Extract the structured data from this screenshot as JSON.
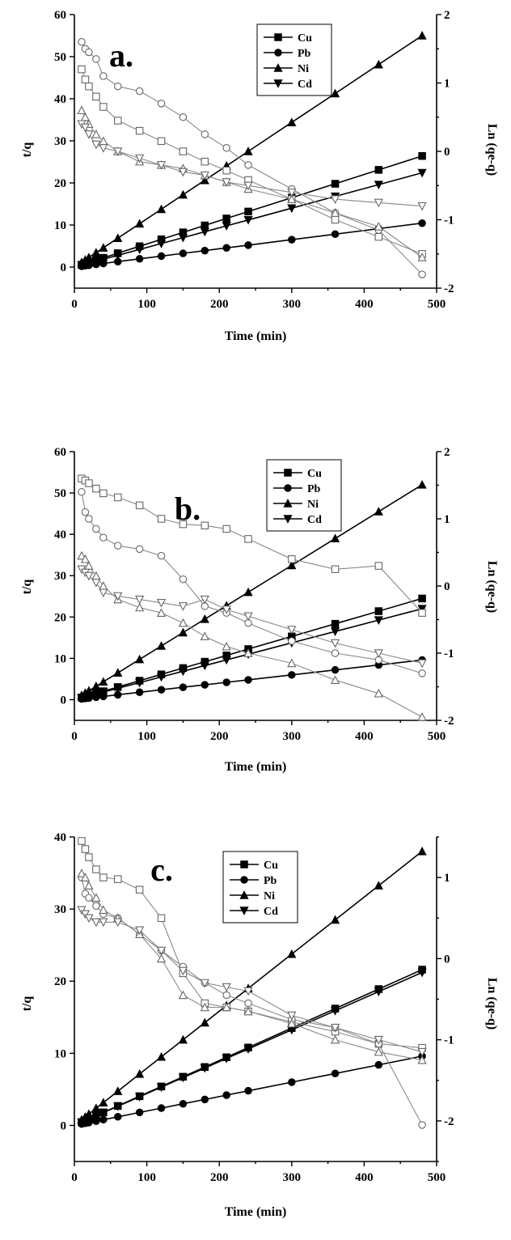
{
  "chart_data": [
    {
      "type": "line",
      "panel_label": "a.",
      "xlabel": "Time (min)",
      "ylabel": "t/q",
      "y2label": "Ln (qe-q)",
      "xlim": [
        0,
        500
      ],
      "ylim": [
        -5,
        60
      ],
      "y2lim": [
        -2,
        2
      ],
      "xticks": [
        0,
        100,
        200,
        300,
        400,
        500
      ],
      "yticks": [
        0,
        10,
        20,
        30,
        40,
        50,
        60
      ],
      "y2ticks": [
        -2,
        -1,
        0,
        1,
        2
      ],
      "legend": [
        "Cu",
        "Pb",
        "Ni",
        "Cd"
      ],
      "legend_position": "top-center",
      "x": [
        10,
        15,
        20,
        30,
        40,
        60,
        90,
        120,
        150,
        180,
        210,
        240,
        300,
        360,
        420,
        480
      ],
      "series": [
        {
          "name": "Cu",
          "marker": "square",
          "axis": "left",
          "filled": true,
          "values": [
            0.55,
            0.83,
            1.1,
            1.65,
            2.2,
            3.3,
            4.95,
            6.6,
            8.25,
            9.9,
            11.55,
            13.2,
            16.5,
            19.8,
            23.1,
            26.4
          ]
        },
        {
          "name": "Pb",
          "marker": "circle",
          "axis": "left",
          "filled": true,
          "values": [
            0.22,
            0.33,
            0.44,
            0.65,
            0.87,
            1.3,
            1.96,
            2.61,
            3.26,
            3.91,
            4.57,
            5.22,
            6.52,
            7.83,
            9.13,
            10.44
          ]
        },
        {
          "name": "Ni",
          "marker": "triangle-up",
          "axis": "left",
          "filled": true,
          "values": [
            1.15,
            1.72,
            2.29,
            3.44,
            4.58,
            6.88,
            10.31,
            13.75,
            17.19,
            20.63,
            24.06,
            27.5,
            34.38,
            41.25,
            48.13,
            55.0
          ]
        },
        {
          "name": "Cd",
          "marker": "triangle-down",
          "axis": "left",
          "filled": true,
          "values": [
            0.47,
            0.7,
            0.93,
            1.4,
            1.87,
            2.8,
            4.2,
            5.6,
            7.0,
            8.4,
            9.8,
            11.2,
            14.0,
            16.8,
            19.6,
            22.4
          ]
        },
        {
          "name": "Cu",
          "marker": "square",
          "axis": "right",
          "filled": false,
          "values": [
            1.2,
            1.05,
            0.95,
            0.8,
            0.65,
            0.45,
            0.3,
            0.15,
            0.0,
            -0.15,
            -0.28,
            -0.42,
            -0.7,
            -1.0,
            -1.25,
            -1.5
          ]
        },
        {
          "name": "Pb",
          "marker": "circle",
          "axis": "right",
          "filled": false,
          "values": [
            1.6,
            1.5,
            1.45,
            1.35,
            1.1,
            0.95,
            0.88,
            0.7,
            0.5,
            0.25,
            0.05,
            -0.2,
            -0.55,
            -0.9,
            -1.15,
            -1.8
          ]
        },
        {
          "name": "Ni",
          "marker": "triangle-up",
          "axis": "right",
          "filled": false,
          "values": [
            0.6,
            0.5,
            0.4,
            0.25,
            0.15,
            0.0,
            -0.15,
            -0.2,
            -0.25,
            -0.35,
            -0.45,
            -0.55,
            -0.7,
            -0.9,
            -1.1,
            -1.55
          ]
        },
        {
          "name": "Cd",
          "marker": "triangle-down",
          "axis": "right",
          "filled": false,
          "values": [
            0.4,
            0.35,
            0.25,
            0.1,
            0.05,
            0.0,
            -0.1,
            -0.2,
            -0.3,
            -0.35,
            -0.45,
            -0.5,
            -0.6,
            -0.7,
            -0.75,
            -0.8
          ]
        }
      ]
    },
    {
      "type": "line",
      "panel_label": "b.",
      "xlabel": "Time (min)",
      "ylabel": "t/q",
      "y2label": "Ln (qe-q)",
      "xlim": [
        0,
        500
      ],
      "ylim": [
        -5,
        60
      ],
      "y2lim": [
        -2,
        2
      ],
      "xticks": [
        0,
        100,
        200,
        300,
        400,
        500
      ],
      "yticks": [
        0,
        10,
        20,
        30,
        40,
        50,
        60
      ],
      "y2ticks": [
        -2,
        -1,
        0,
        1,
        2
      ],
      "legend": [
        "Cu",
        "Pb",
        "Ni",
        "Cd"
      ],
      "legend_position": "top-right",
      "x": [
        10,
        15,
        20,
        30,
        40,
        60,
        90,
        120,
        150,
        180,
        210,
        240,
        300,
        360,
        420,
        480
      ],
      "series": [
        {
          "name": "Cu",
          "marker": "square",
          "axis": "left",
          "filled": true,
          "values": [
            0.51,
            0.77,
            1.02,
            1.53,
            2.04,
            3.06,
            4.59,
            6.12,
            7.65,
            9.18,
            10.71,
            12.24,
            15.3,
            18.36,
            21.42,
            24.48
          ]
        },
        {
          "name": "Pb",
          "marker": "circle",
          "axis": "left",
          "filled": true,
          "values": [
            0.2,
            0.3,
            0.4,
            0.6,
            0.8,
            1.2,
            1.8,
            2.4,
            3.0,
            3.6,
            4.2,
            4.8,
            6.0,
            7.2,
            8.4,
            9.6
          ]
        },
        {
          "name": "Ni",
          "marker": "triangle-up",
          "axis": "left",
          "filled": true,
          "values": [
            1.08,
            1.63,
            2.17,
            3.25,
            4.33,
            6.5,
            9.75,
            13.0,
            16.25,
            19.5,
            22.75,
            26.0,
            32.5,
            39.0,
            45.5,
            52.0
          ]
        },
        {
          "name": "Cd",
          "marker": "triangle-down",
          "axis": "left",
          "filled": true,
          "values": [
            0.46,
            0.69,
            0.92,
            1.38,
            1.83,
            2.75,
            4.13,
            5.5,
            6.88,
            8.25,
            9.63,
            11.0,
            13.75,
            16.5,
            19.25,
            22.0
          ]
        },
        {
          "name": "Cu",
          "marker": "square",
          "axis": "right",
          "filled": false,
          "values": [
            1.6,
            1.57,
            1.53,
            1.45,
            1.38,
            1.32,
            1.2,
            1.0,
            0.92,
            0.9,
            0.85,
            0.7,
            0.4,
            0.25,
            0.3,
            -0.4
          ]
        },
        {
          "name": "Pb",
          "marker": "circle",
          "axis": "right",
          "filled": false,
          "values": [
            1.4,
            1.1,
            1.0,
            0.85,
            0.72,
            0.6,
            0.55,
            0.45,
            0.1,
            -0.3,
            -0.4,
            -0.55,
            -0.82,
            -1.0,
            -1.1,
            -1.3
          ]
        },
        {
          "name": "Ni",
          "marker": "triangle-up",
          "axis": "right",
          "filled": false,
          "values": [
            0.45,
            0.4,
            0.3,
            0.15,
            0.0,
            -0.2,
            -0.32,
            -0.4,
            -0.55,
            -0.75,
            -0.9,
            -1.0,
            -1.15,
            -1.4,
            -1.6,
            -1.95
          ]
        },
        {
          "name": "Cd",
          "marker": "triangle-down",
          "axis": "right",
          "filled": false,
          "values": [
            0.25,
            0.2,
            0.15,
            0.05,
            -0.1,
            -0.15,
            -0.2,
            -0.25,
            -0.3,
            -0.2,
            -0.35,
            -0.45,
            -0.65,
            -0.85,
            -1.0,
            -1.15
          ]
        }
      ]
    },
    {
      "type": "line",
      "panel_label": "c.",
      "xlabel": "Time (min)",
      "ylabel": "t/q",
      "y2label": "Ln (qe-q)",
      "xlim": [
        0,
        500
      ],
      "ylim": [
        -5,
        40
      ],
      "y2lim": [
        -2.5,
        1.5
      ],
      "xticks": [
        0,
        100,
        200,
        300,
        400,
        500
      ],
      "yticks": [
        0,
        10,
        20,
        30,
        40
      ],
      "y2ticks": [
        -2,
        -1,
        0,
        1
      ],
      "legend": [
        "Cu",
        "Pb",
        "Ni",
        "Cd"
      ],
      "legend_position": "top-right",
      "x": [
        10,
        15,
        20,
        30,
        40,
        60,
        90,
        120,
        150,
        180,
        210,
        240,
        300,
        360,
        420,
        480
      ],
      "series": [
        {
          "name": "Cu",
          "marker": "square",
          "axis": "left",
          "filled": true,
          "values": [
            0.45,
            0.68,
            0.9,
            1.35,
            1.8,
            2.7,
            4.05,
            5.4,
            6.75,
            8.1,
            9.45,
            10.8,
            13.5,
            16.2,
            18.9,
            21.6
          ]
        },
        {
          "name": "Pb",
          "marker": "circle",
          "axis": "left",
          "filled": true,
          "values": [
            0.2,
            0.3,
            0.4,
            0.6,
            0.8,
            1.2,
            1.8,
            2.4,
            3.0,
            3.6,
            4.2,
            4.8,
            6.0,
            7.2,
            8.4,
            9.6
          ]
        },
        {
          "name": "Ni",
          "marker": "triangle-up",
          "axis": "left",
          "filled": true,
          "values": [
            0.79,
            1.19,
            1.58,
            2.38,
            3.17,
            4.75,
            7.13,
            9.5,
            11.88,
            14.25,
            16.63,
            19.0,
            23.75,
            28.5,
            33.25,
            38.0
          ]
        },
        {
          "name": "Cd",
          "marker": "triangle-down",
          "axis": "left",
          "filled": true,
          "values": [
            0.44,
            0.66,
            0.88,
            1.33,
            1.77,
            2.65,
            3.98,
            5.3,
            6.63,
            7.95,
            9.28,
            10.6,
            13.25,
            15.9,
            18.55,
            21.2
          ]
        },
        {
          "name": "Cu",
          "marker": "square",
          "axis": "right",
          "filled": false,
          "values": [
            1.45,
            1.35,
            1.25,
            1.1,
            1.0,
            0.98,
            0.85,
            0.5,
            -0.18,
            -0.55,
            -0.6,
            -0.65,
            -0.78,
            -0.9,
            -1.05,
            -1.1
          ]
        },
        {
          "name": "Pb",
          "marker": "circle",
          "axis": "right",
          "filled": false,
          "values": [
            1.0,
            0.8,
            0.75,
            0.65,
            0.55,
            0.5,
            0.3,
            0.1,
            -0.1,
            -0.3,
            -0.45,
            -0.55,
            -0.75,
            -0.85,
            -1.05,
            -2.05
          ]
        },
        {
          "name": "Ni",
          "marker": "triangle-up",
          "axis": "right",
          "filled": false,
          "values": [
            1.05,
            1.0,
            0.9,
            0.75,
            0.6,
            0.5,
            0.3,
            0.0,
            -0.45,
            -0.6,
            -0.6,
            -0.65,
            -0.8,
            -1.0,
            -1.15,
            -1.25
          ]
        },
        {
          "name": "Cd",
          "marker": "triangle-down",
          "axis": "right",
          "filled": false,
          "values": [
            0.6,
            0.55,
            0.5,
            0.45,
            0.45,
            0.45,
            0.35,
            0.1,
            -0.15,
            -0.3,
            -0.35,
            -0.4,
            -0.7,
            -0.85,
            -1.0,
            -1.15
          ]
        }
      ]
    }
  ]
}
